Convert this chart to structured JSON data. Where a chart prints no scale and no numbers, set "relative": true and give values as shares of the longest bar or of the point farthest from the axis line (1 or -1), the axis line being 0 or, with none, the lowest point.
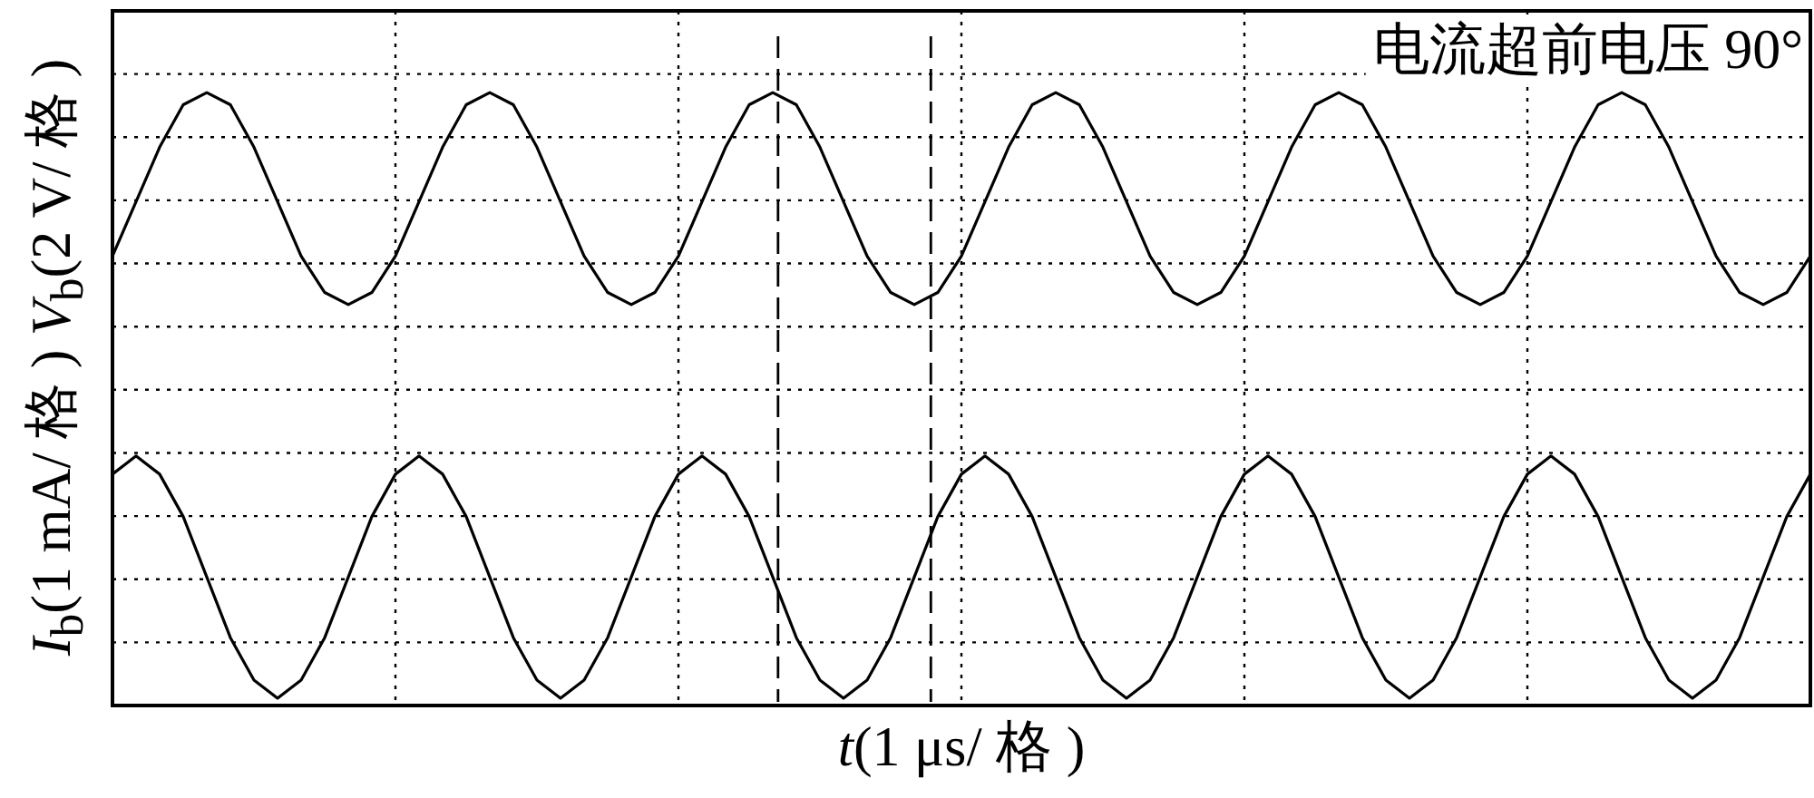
{
  "chart_data": {
    "type": "line",
    "relative": true,
    "xlabel": "t(1 μs/ 格 )",
    "ylabel": "I$_{b}$(1 mA/ 格 ) V$_{b}$(2 V/ 格 )",
    "annotations": [
      "电流超前电压 90°"
    ],
    "grid": true,
    "line_style": "solid",
    "categories": [
      null,
      null,
      null,
      null,
      null,
      null,
      null,
      null,
      null,
      null,
      null,
      null,
      null,
      null,
      null,
      null,
      null,
      null,
      null,
      null,
      null,
      null,
      null,
      null,
      null,
      null,
      null,
      null,
      null,
      null,
      null,
      null,
      null,
      null,
      null,
      null,
      null,
      null,
      null,
      null,
      null,
      null,
      null,
      null,
      null,
      null,
      null,
      null,
      null,
      null,
      null,
      null,
      null,
      null,
      null,
      null,
      null,
      null,
      null,
      null,
      null,
      null,
      null,
      null,
      null,
      null,
      null,
      null,
      null,
      null,
      null,
      null,
      null
    ],
    "series": [
      {
        "color": "#000000",
        "values": [
          0.73,
          0.82,
          0.91,
          0.98,
          1,
          0.98,
          0.91,
          0.82,
          0.73,
          0.67,
          0.65,
          0.67,
          0.73,
          0.82,
          0.91,
          0.98,
          1,
          0.98,
          0.91,
          0.82,
          0.73,
          0.67,
          0.65,
          0.67,
          0.73,
          0.82,
          0.91,
          0.98,
          1,
          0.98,
          0.91,
          0.82,
          0.73,
          0.67,
          0.65,
          0.67,
          0.73,
          0.82,
          0.91,
          0.98,
          1,
          0.98,
          0.91,
          0.82,
          0.73,
          0.67,
          0.65,
          0.67,
          0.73,
          0.82,
          0.91,
          0.98,
          1,
          0.98,
          0.91,
          0.82,
          0.73,
          0.67,
          0.65,
          0.67,
          0.73,
          0.82,
          0.91,
          0.98,
          1,
          0.98,
          0.91,
          0.82,
          0.73,
          0.67,
          0.65,
          0.67,
          0.73
        ]
      },
      {
        "color": "#000000",
        "values": [
          0.37,
          0.4,
          0.37,
          0.3,
          0.2,
          0.1,
          0.03,
          0,
          0.03,
          0.1,
          0.2,
          0.3,
          0.37,
          0.4,
          0.37,
          0.3,
          0.2,
          0.1,
          0.03,
          0,
          0.03,
          0.1,
          0.2,
          0.3,
          0.37,
          0.4,
          0.37,
          0.3,
          0.2,
          0.1,
          0.03,
          0,
          0.03,
          0.1,
          0.2,
          0.3,
          0.37,
          0.4,
          0.37,
          0.3,
          0.2,
          0.1,
          0.03,
          0,
          0.03,
          0.1,
          0.2,
          0.3,
          0.37,
          0.4,
          0.37,
          0.3,
          0.2,
          0.1,
          0.03,
          0,
          0.03,
          0.1,
          0.2,
          0.3,
          0.37,
          0.4,
          0.37,
          0.3,
          0.2,
          0.1,
          0.03,
          0,
          0.03,
          0.1,
          0.2,
          0.3,
          0.37
        ]
      }
    ]
  }
}
